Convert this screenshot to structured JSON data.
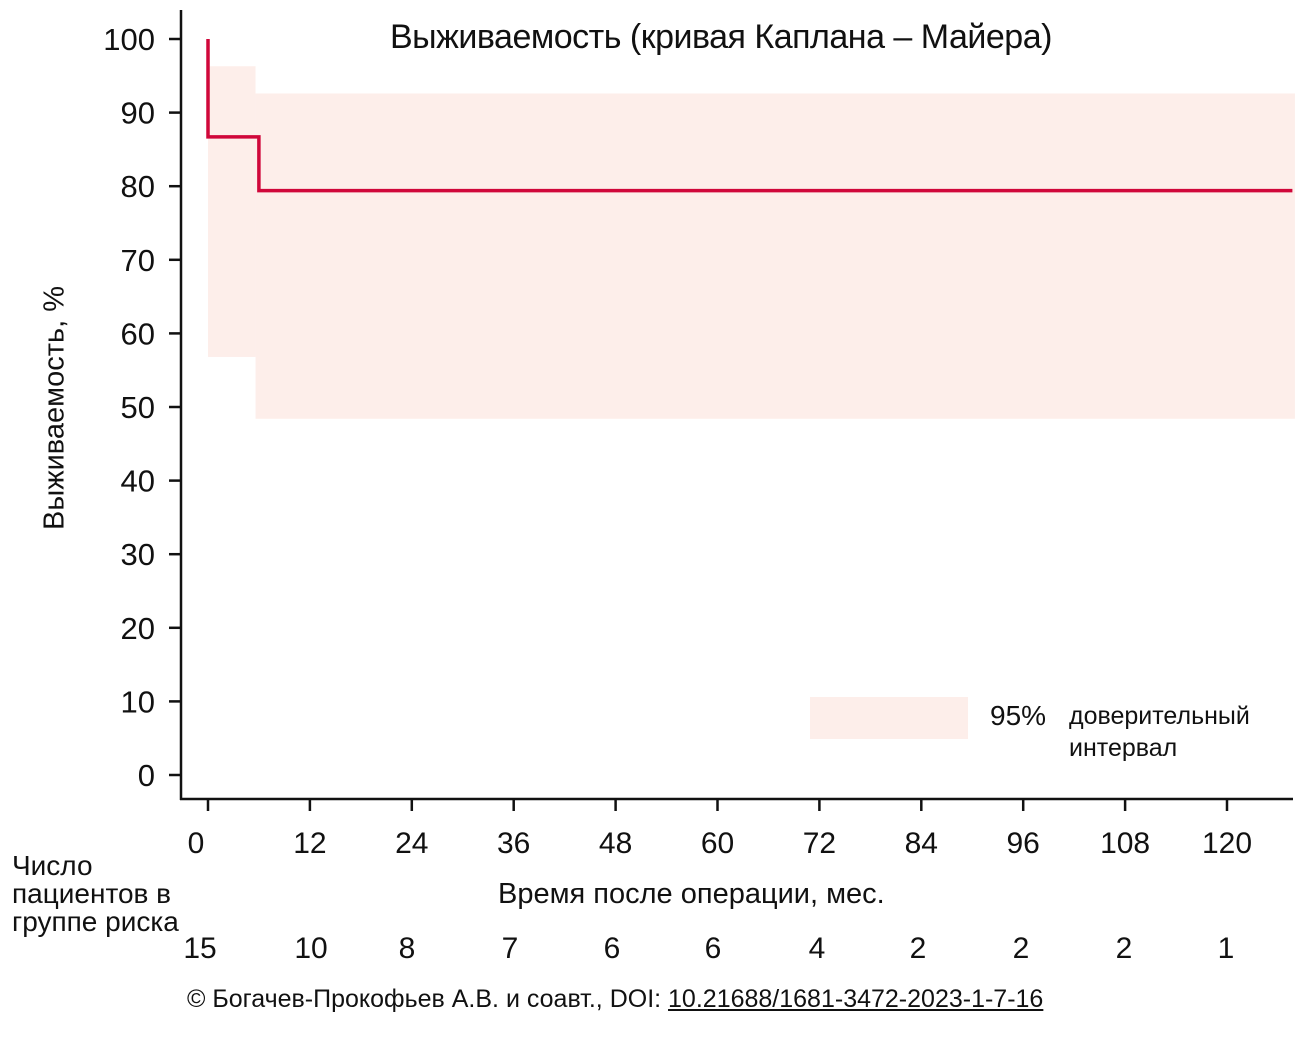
{
  "chart_data": {
    "type": "line",
    "subtype": "kaplan-meier step curve with 95% CI band",
    "title": "Выживаемость (кривая Каплана – Майера)",
    "xlabel": "Время после операции, мес.",
    "ylabel": "Выживаемость, %",
    "xlim": [
      0,
      128
    ],
    "ylim": [
      0,
      100
    ],
    "x_ticks": [
      0,
      12,
      24,
      36,
      48,
      60,
      72,
      84,
      96,
      108,
      120
    ],
    "y_ticks": [
      0,
      10,
      20,
      30,
      40,
      50,
      60,
      70,
      80,
      90,
      100
    ],
    "grid": false,
    "series": [
      {
        "name": "Выживаемость",
        "color": "#d0073a",
        "step_points": [
          {
            "x": 0,
            "y": 100
          },
          {
            "x": 0,
            "y": 86.7
          },
          {
            "x": 6,
            "y": 86.7
          },
          {
            "x": 6,
            "y": 79.4
          },
          {
            "x": 127.7,
            "y": 79.4
          }
        ]
      }
    ],
    "confidence_band": {
      "name": "95% доверительный интервал",
      "color": "#fdeeea",
      "segments": [
        {
          "x_start": 0,
          "x_end": 5.6,
          "lower": 56.8,
          "upper": 96.3
        },
        {
          "x_start": 5.6,
          "x_end": 128,
          "lower": 48.4,
          "upper": 92.6
        }
      ]
    },
    "legend": {
      "position": "lower right",
      "entries": [
        {
          "label": "95%",
          "description": "доверительный интервал"
        }
      ]
    },
    "risk_table": {
      "label": "Число пациентов в группе риска",
      "times": [
        0,
        12,
        24,
        36,
        48,
        60,
        72,
        84,
        96,
        108,
        120
      ],
      "counts": [
        15,
        10,
        8,
        7,
        6,
        6,
        4,
        2,
        2,
        2,
        1
      ]
    }
  },
  "labels": {
    "title": "Выживаемость (кривая Каплана – Майера)",
    "ylabel": "Выживаемость, %",
    "xlabel": "Время после операции, мес.",
    "risk_label": "Число пациентов в группе риска",
    "legend_pct": "95%",
    "legend_desc": "доверительный интервал",
    "credit_prefix": "© Богачев-Прокофьев А.В. и соавт., DOI: ",
    "credit_doi": "10.21688/1681-3472-2023-1-7-16"
  },
  "colors": {
    "curve": "#d0073a",
    "ci_band": "#fdeeea",
    "axis": "#111111"
  }
}
